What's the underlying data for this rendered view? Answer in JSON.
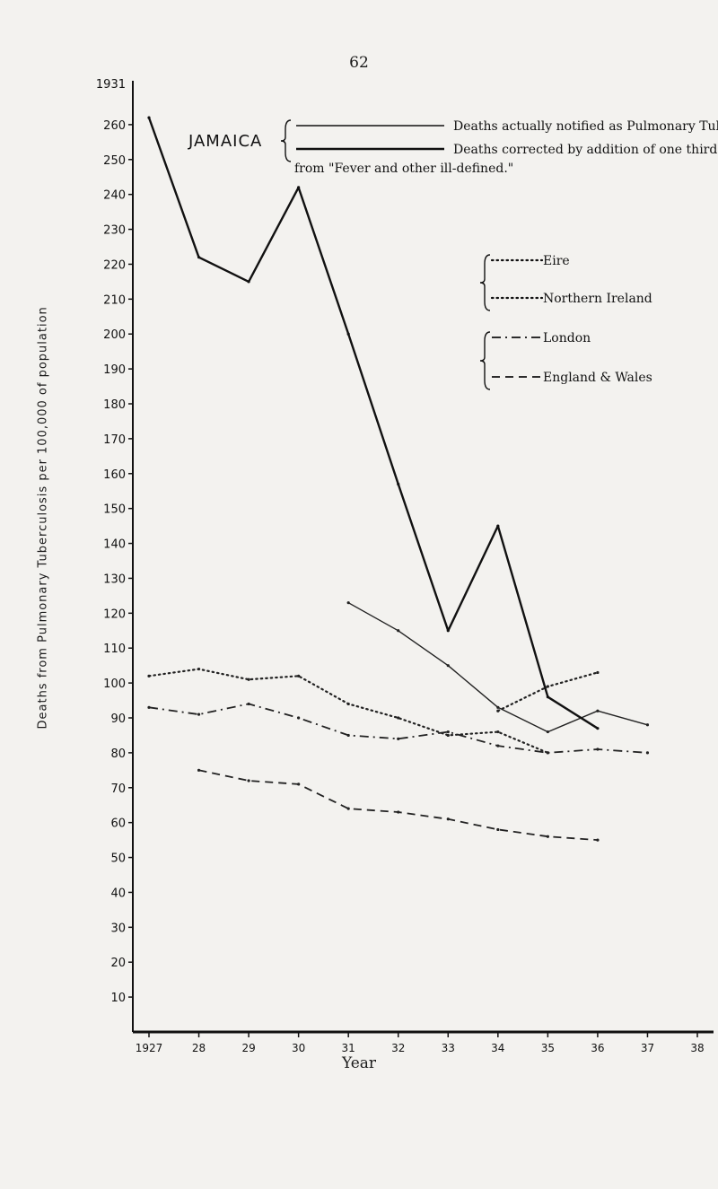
{
  "page_number": "62",
  "chart_data": {
    "type": "line",
    "ylabel": "Deaths from Pulmonary Tuberculosis per 100,000 of population",
    "xlabel": "Year",
    "y_ticks": [
      "10",
      "20",
      "30",
      "40",
      "50",
      "60",
      "70",
      "80",
      "90",
      "100",
      "110",
      "120",
      "130",
      "140",
      "150",
      "160",
      "170",
      "180",
      "190",
      "200",
      "210",
      "220",
      "230",
      "240",
      "250",
      "260"
    ],
    "y_top_label": "1931",
    "ylim": [
      0,
      270
    ],
    "x_ticks": [
      "1927",
      "28",
      "29",
      "30",
      "31",
      "32",
      "33",
      "34",
      "35",
      "36",
      "37",
      "38"
    ],
    "x": [
      1927,
      1928,
      1929,
      1930,
      1931,
      1932,
      1933,
      1934,
      1935,
      1936,
      1937,
      1938
    ],
    "legend_groups": [
      {
        "label": "JAMAICA",
        "entries": [
          {
            "line": "solid-thin",
            "text": "Deaths actually notified as Pulmonary Tuberculosis"
          },
          {
            "line": "solid-thick",
            "text": "Deaths corrected by addition of one third of deaths from \"Fever and other ill-defined.\""
          }
        ]
      },
      {
        "label": "",
        "entries": [
          {
            "line": "dotted",
            "text": "Eire"
          },
          {
            "line": "dotted",
            "text": "Northern Ireland"
          }
        ]
      },
      {
        "label": "",
        "entries": [
          {
            "line": "dash-dot",
            "text": "London"
          },
          {
            "line": "dashed",
            "text": "England & Wales"
          }
        ]
      }
    ],
    "series": [
      {
        "key": "jam_notified",
        "style": "solid-thin",
        "color": "#222222",
        "values": [
          null,
          null,
          null,
          null,
          123,
          115,
          105,
          93,
          86,
          92,
          88,
          null
        ]
      },
      {
        "key": "jam_corrected",
        "style": "solid-thick",
        "color": "#111111",
        "values": [
          262,
          222,
          215,
          242,
          200,
          157,
          115,
          145,
          96,
          87,
          null,
          null
        ]
      },
      {
        "key": "eire",
        "style": "dotted",
        "color": "#222222",
        "values": [
          102,
          104,
          101,
          102,
          94,
          90,
          85,
          86,
          80,
          null,
          null,
          null
        ]
      },
      {
        "key": "northern_ireland",
        "style": "dotted",
        "color": "#222222",
        "values": [
          null,
          null,
          null,
          null,
          null,
          null,
          null,
          92,
          99,
          103,
          null,
          null
        ]
      },
      {
        "key": "london",
        "style": "dash-dot",
        "color": "#222222",
        "values": [
          93,
          91,
          94,
          90,
          85,
          84,
          86,
          82,
          80,
          81,
          80,
          null
        ]
      },
      {
        "key": "england_wales",
        "style": "dashed",
        "color": "#222222",
        "values": [
          null,
          75,
          72,
          71,
          64,
          63,
          61,
          58,
          56,
          55,
          null,
          null
        ]
      }
    ]
  }
}
